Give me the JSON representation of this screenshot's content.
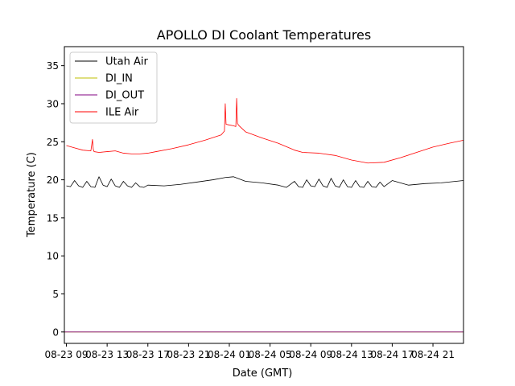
{
  "chart_data": {
    "type": "line",
    "title": "APOLLO DI Coolant Temperatures",
    "xlabel": "Date (GMT)",
    "ylabel": "Temperature (C)",
    "x_unit": "hours since 08-23 09:00 GMT",
    "xlim": [
      -0.25,
      48.75
    ],
    "ylim": [
      -1.5,
      37.5
    ],
    "y_ticks": [
      0,
      5,
      10,
      15,
      20,
      25,
      30,
      35
    ],
    "x_ticks": [
      {
        "x": 0,
        "label": "08-23 09"
      },
      {
        "x": 5,
        "label": "08-23 13"
      },
      {
        "x": 10,
        "label": "08-23 17"
      },
      {
        "x": 15,
        "label": "08-23 21"
      },
      {
        "x": 20,
        "label": "08-24 01"
      },
      {
        "x": 25,
        "label": "08-24 05"
      },
      {
        "x": 30,
        "label": "08-24 09"
      },
      {
        "x": 35,
        "label": "08-24 13"
      },
      {
        "x": 40,
        "label": "08-24 17"
      },
      {
        "x": 45,
        "label": "08-24 21"
      }
    ],
    "legend_position": "top-left",
    "series": [
      {
        "name": "Utah Air",
        "color": "#000000",
        "x": [
          0,
          0.5,
          1,
          1.5,
          2,
          2.5,
          3,
          3.5,
          4,
          4.5,
          5,
          5.5,
          6,
          6.5,
          7,
          7.5,
          8,
          8.5,
          9,
          9.5,
          10,
          12,
          14,
          16,
          18,
          19.5,
          20.5,
          21,
          22,
          24,
          26,
          27,
          28,
          28.5,
          29,
          29.5,
          30,
          30.5,
          31,
          31.5,
          32,
          32.5,
          33,
          33.5,
          34,
          34.5,
          35,
          35.5,
          36,
          36.5,
          37,
          37.5,
          38,
          38.5,
          39,
          40,
          42,
          44,
          46,
          48.75
        ],
        "y": [
          19.2,
          19.1,
          19.9,
          19.2,
          19.0,
          19.8,
          19.1,
          19.0,
          20.4,
          19.3,
          19.1,
          20.1,
          19.2,
          19.0,
          19.8,
          19.2,
          19.0,
          19.6,
          19.1,
          19.0,
          19.3,
          19.2,
          19.4,
          19.7,
          20.0,
          20.3,
          20.4,
          20.2,
          19.8,
          19.6,
          19.3,
          19.0,
          19.8,
          19.1,
          19.0,
          20.0,
          19.2,
          19.1,
          20.1,
          19.2,
          19.0,
          20.2,
          19.2,
          19.0,
          20.0,
          19.1,
          19.0,
          19.9,
          19.1,
          19.0,
          19.8,
          19.1,
          19.0,
          19.7,
          19.1,
          19.9,
          19.3,
          19.5,
          19.6,
          19.9
        ]
      },
      {
        "name": "DI_IN",
        "color": "#bfbf00",
        "x": [
          -0.25,
          48.75
        ],
        "y": [
          0,
          0
        ]
      },
      {
        "name": "DI_OUT",
        "color": "#800080",
        "x": [
          -0.25,
          48.75
        ],
        "y": [
          0,
          0
        ]
      },
      {
        "name": "ILE Air",
        "color": "#ff0000",
        "x": [
          0,
          1,
          2,
          3,
          3.2,
          3.3,
          3.4,
          4,
          5,
          6,
          7,
          8,
          9,
          10,
          11,
          13,
          15,
          17,
          19,
          19.4,
          19.5,
          19.6,
          20,
          20.5,
          20.8,
          20.9,
          21.0,
          21.2,
          22,
          24,
          26,
          28,
          29,
          31,
          33,
          35,
          37,
          39,
          41,
          43,
          45,
          47,
          48.75
        ],
        "y": [
          24.5,
          24.2,
          23.9,
          23.8,
          25.3,
          24.0,
          23.7,
          23.6,
          23.7,
          23.8,
          23.5,
          23.4,
          23.4,
          23.5,
          23.7,
          24.1,
          24.6,
          25.2,
          25.9,
          26.4,
          30.0,
          27.3,
          27.2,
          27.1,
          27.0,
          30.7,
          27.4,
          27.1,
          26.3,
          25.5,
          24.8,
          23.9,
          23.6,
          23.5,
          23.2,
          22.6,
          22.2,
          22.3,
          22.9,
          23.6,
          24.3,
          24.8,
          25.2
        ]
      }
    ]
  }
}
